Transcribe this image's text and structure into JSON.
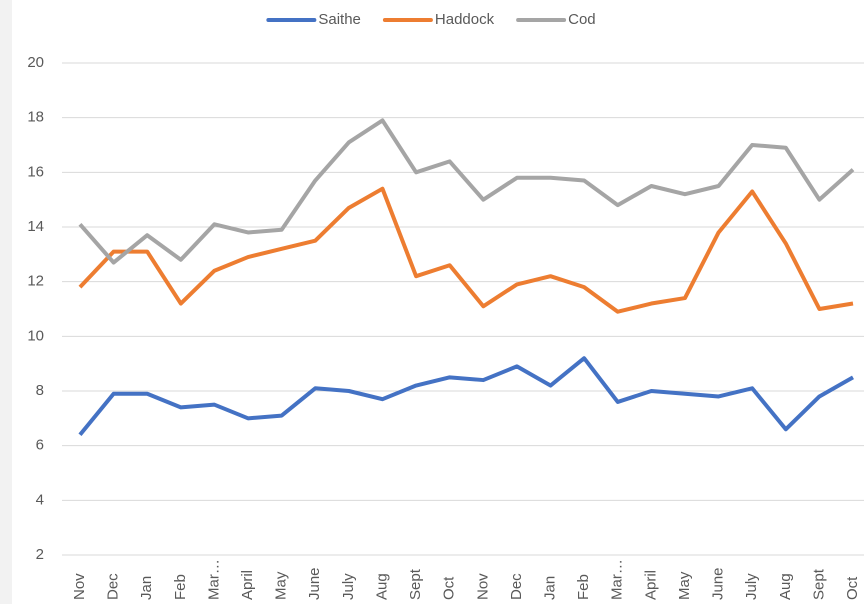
{
  "chart_data": {
    "type": "line",
    "categories": [
      "Nov",
      "Dec",
      "Jan",
      "Feb",
      "Mar…",
      "April",
      "May",
      "June",
      "July",
      "Aug",
      "Sept",
      "Oct",
      "Nov",
      "Dec",
      "Jan",
      "Feb",
      "Mar…",
      "April",
      "May",
      "June",
      "July",
      "Aug",
      "Sept",
      "Oct"
    ],
    "series": [
      {
        "name": "Saithe",
        "color": "#4472c4",
        "values": [
          6.4,
          7.9,
          7.9,
          7.4,
          7.5,
          7.0,
          7.1,
          8.1,
          8.0,
          7.7,
          8.2,
          8.5,
          8.4,
          8.9,
          8.2,
          9.2,
          7.6,
          8.0,
          7.9,
          7.8,
          8.1,
          6.6,
          7.8,
          8.5
        ]
      },
      {
        "name": "Haddock",
        "color": "#ed7d31",
        "values": [
          11.8,
          13.1,
          13.1,
          11.2,
          12.4,
          12.9,
          13.2,
          13.5,
          14.7,
          15.4,
          12.2,
          12.6,
          11.1,
          11.9,
          12.2,
          11.8,
          10.9,
          11.2,
          11.4,
          13.8,
          15.3,
          13.4,
          11.0,
          11.2
        ]
      },
      {
        "name": "Cod",
        "color": "#a5a5a5",
        "values": [
          14.1,
          12.7,
          13.7,
          12.8,
          14.1,
          13.8,
          13.9,
          15.7,
          17.1,
          17.9,
          16.0,
          16.4,
          15.0,
          15.8,
          15.8,
          15.7,
          14.8,
          15.5,
          15.2,
          15.5,
          17.0,
          16.9,
          15.0,
          16.1
        ]
      }
    ],
    "ylim": [
      2,
      20
    ],
    "yticks": [
      2,
      4,
      6,
      8,
      10,
      12,
      14,
      16,
      18,
      20
    ],
    "grid": true,
    "legend": "top"
  }
}
